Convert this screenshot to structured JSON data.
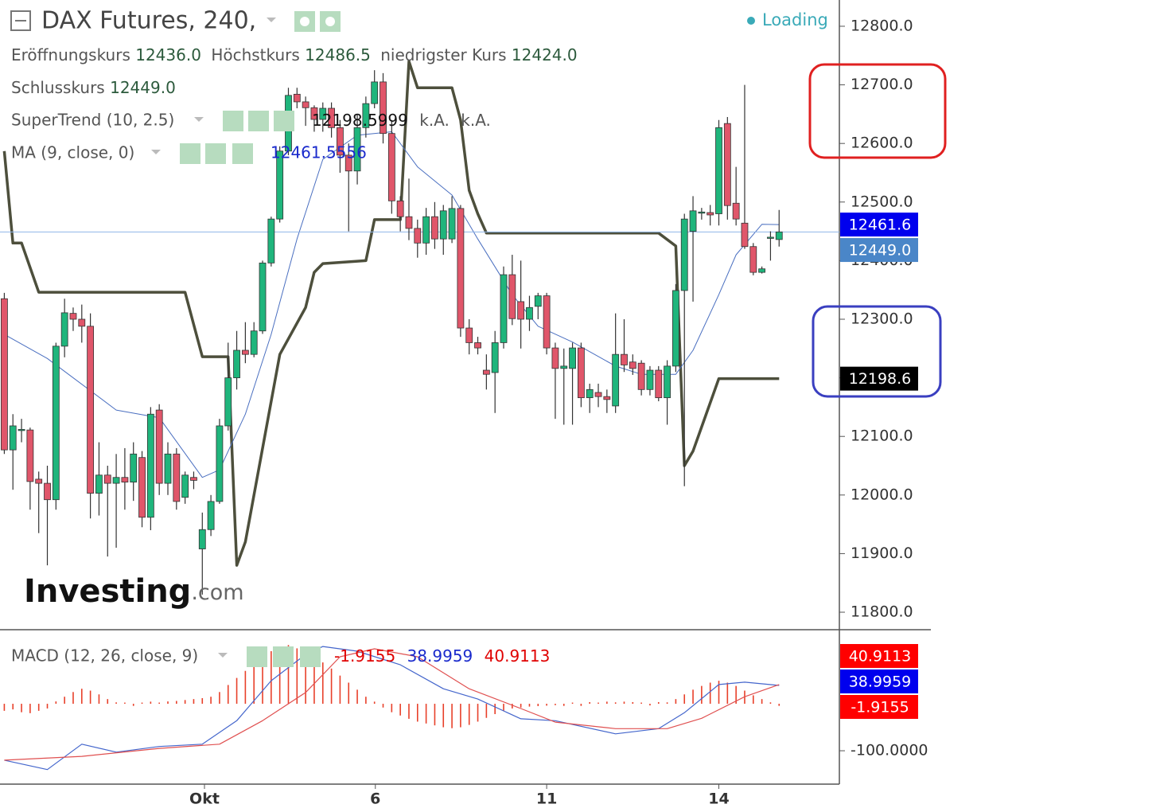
{
  "header": {
    "title": "DAX Futures, 240,",
    "status": "Loading"
  },
  "legend": {
    "open_label": "Eröffnungskurs",
    "open": "12436.0",
    "high_label": "Höchstkurs",
    "high": "12486.5",
    "low_label": "niedrigster Kurs",
    "low": "12424.0",
    "close_label": "Schlusskurs",
    "close": "12449.0",
    "supertrend_values": [
      "12198.5999",
      "k.A.",
      "k.A."
    ],
    "ma_value": "12461.5556"
  },
  "logo": {
    "brand": "Investing",
    "suffix": ".com"
  },
  "chart_data": [
    {
      "type": "candlestick",
      "xlim": [
        -0.5,
        97
      ],
      "ylim": [
        11771.5,
        12844.8
      ],
      "yticks": [
        {
          "value": 11800,
          "label": "11800.0"
        },
        {
          "value": 11900,
          "label": "11900.0"
        },
        {
          "value": 12000,
          "label": "12000.0"
        },
        {
          "value": 12100,
          "label": "12100.0"
        },
        {
          "value": 12200,
          "label": "12200.0"
        },
        {
          "value": 12300,
          "label": "12300.0"
        },
        {
          "value": 12400,
          "label": "12400.0"
        },
        {
          "value": 12500,
          "label": "12500.0"
        },
        {
          "value": 12600,
          "label": "12600.0"
        },
        {
          "value": 12700,
          "label": "12700.0"
        },
        {
          "value": 12800,
          "label": "12800.0"
        }
      ],
      "up_color": "#1fb57c",
      "down_color": "#e0566a",
      "candles": [
        [
          12335,
          12345,
          12070,
          12077
        ],
        [
          12077,
          12138,
          12009,
          12118
        ],
        [
          12110,
          12130,
          12090,
          12112
        ],
        [
          12111,
          12115,
          11975,
          12023
        ],
        [
          12027,
          12040,
          11935,
          12020
        ],
        [
          12020,
          12050,
          11880,
          11992
        ],
        [
          11992,
          12260,
          11975,
          12254
        ],
        [
          12254,
          12335,
          12235,
          12311
        ],
        [
          12310,
          12320,
          12280,
          12300
        ],
        [
          12300,
          12325,
          12260,
          12288
        ],
        [
          12288,
          12310,
          11960,
          12003
        ],
        [
          12003,
          12090,
          11965,
          12034
        ],
        [
          12034,
          12050,
          11895,
          12020
        ],
        [
          12020,
          12070,
          11910,
          12030
        ],
        [
          12030,
          12080,
          11975,
          12022
        ],
        [
          12022,
          12090,
          11990,
          12070
        ],
        [
          12064,
          12075,
          11945,
          11962
        ],
        [
          11962,
          12150,
          11940,
          12138
        ],
        [
          12145,
          12155,
          12000,
          12020
        ],
        [
          12020,
          12090,
          12000,
          12070
        ],
        [
          12070,
          12080,
          11975,
          11989
        ],
        [
          11996,
          12040,
          11985,
          12034
        ],
        [
          12030,
          12040,
          12010,
          12025
        ],
        [
          11908,
          11970,
          11830,
          11941
        ],
        [
          11941,
          12000,
          11930,
          11989
        ],
        [
          11989,
          12130,
          11985,
          12118
        ],
        [
          12118,
          12260,
          12110,
          12200
        ],
        [
          12200,
          12280,
          12180,
          12247
        ],
        [
          12247,
          12295,
          12225,
          12240
        ],
        [
          12240,
          12295,
          12235,
          12280
        ],
        [
          12280,
          12400,
          12275,
          12396
        ],
        [
          12396,
          12475,
          12390,
          12471
        ],
        [
          12471,
          12595,
          12465,
          12587
        ],
        [
          12587,
          12695,
          12580,
          12682
        ],
        [
          12684,
          12695,
          12660,
          12671
        ],
        [
          12671,
          12680,
          12630,
          12661
        ],
        [
          12661,
          12665,
          12620,
          12641
        ],
        [
          12641,
          12670,
          12620,
          12660
        ],
        [
          12660,
          12670,
          12610,
          12627
        ],
        [
          12627,
          12640,
          12550,
          12580
        ],
        [
          12580,
          12600,
          12450,
          12553
        ],
        [
          12553,
          12650,
          12530,
          12627
        ],
        [
          12627,
          12680,
          12610,
          12668
        ],
        [
          12668,
          12725,
          12660,
          12705
        ],
        [
          12705,
          12720,
          12600,
          12617
        ],
        [
          12617,
          12640,
          12480,
          12502
        ],
        [
          12502,
          12510,
          12450,
          12475
        ],
        [
          12475,
          12540,
          12435,
          12455
        ],
        [
          12455,
          12470,
          12405,
          12430
        ],
        [
          12430,
          12490,
          12410,
          12475
        ],
        [
          12475,
          12500,
          12420,
          12437
        ],
        [
          12437,
          12495,
          12410,
          12485
        ],
        [
          12437,
          12510,
          12430,
          12489
        ],
        [
          12489,
          12495,
          12270,
          12285
        ],
        [
          12285,
          12300,
          12240,
          12260
        ],
        [
          12260,
          12270,
          12240,
          12251
        ],
        [
          12213,
          12240,
          12180,
          12206
        ],
        [
          12209,
          12280,
          12140,
          12260
        ],
        [
          12260,
          12390,
          12250,
          12376
        ],
        [
          12376,
          12410,
          12290,
          12301
        ],
        [
          12330,
          12400,
          12250,
          12300
        ],
        [
          12300,
          12340,
          12280,
          12320
        ],
        [
          12322,
          12345,
          12300,
          12340
        ],
        [
          12340,
          12345,
          12240,
          12251
        ],
        [
          12251,
          12260,
          12130,
          12216
        ],
        [
          12216,
          12250,
          12120,
          12220
        ],
        [
          12216,
          12260,
          12120,
          12251
        ],
        [
          12251,
          12260,
          12150,
          12166
        ],
        [
          12166,
          12190,
          12140,
          12180
        ],
        [
          12175,
          12190,
          12150,
          12168
        ],
        [
          12168,
          12180,
          12140,
          12163
        ],
        [
          12152,
          12310,
          12140,
          12240
        ],
        [
          12240,
          12300,
          12210,
          12222
        ],
        [
          12227,
          12240,
          12205,
          12216
        ],
        [
          12225,
          12230,
          12170,
          12180
        ],
        [
          12180,
          12220,
          12170,
          12213
        ],
        [
          12213,
          12220,
          12160,
          12166
        ],
        [
          12166,
          12230,
          12120,
          12220
        ],
        [
          12220,
          12360,
          12210,
          12349
        ],
        [
          12349,
          12480,
          12015,
          12471
        ],
        [
          12450,
          12510,
          12330,
          12485
        ],
        [
          12482,
          12490,
          12470,
          12483
        ],
        [
          12482,
          12495,
          12460,
          12478
        ],
        [
          12480,
          12640,
          12460,
          12627
        ],
        [
          12634,
          12645,
          12470,
          12494
        ],
        [
          12498,
          12560,
          12460,
          12471
        ],
        [
          12464,
          12700,
          12420,
          12424
        ],
        [
          12424,
          12430,
          12375,
          12380
        ],
        [
          12380,
          12390,
          12378,
          12386
        ],
        [
          12440,
          12450,
          12400,
          12440
        ],
        [
          12436,
          12486.5,
          12424,
          12449
        ]
      ],
      "series": [
        {
          "name": "SuperTrend (10, 2.5)",
          "color": "#4d4f3c",
          "width": 3.5,
          "x": [
            0,
            1,
            2,
            4,
            21,
            23,
            26,
            27,
            28,
            32,
            35,
            36,
            37,
            42,
            43,
            46,
            47,
            48,
            52,
            53,
            54,
            55,
            56,
            76,
            78,
            79,
            80,
            83,
            90
          ],
          "values": [
            12587,
            12430,
            12430,
            12346,
            12346,
            12236,
            12236,
            11880,
            11920,
            12240,
            12320,
            12380,
            12395,
            12400,
            12470,
            12470,
            12740,
            12695,
            12695,
            12640,
            12520,
            12480,
            12447,
            12447,
            12425,
            12050,
            12075,
            12198.6,
            12198.6
          ]
        },
        {
          "name": "MA (9, close, 0)",
          "color": "#4a6fc0",
          "width": 1,
          "x": [
            0,
            5,
            13,
            18,
            23,
            25,
            28,
            31,
            34,
            37,
            41,
            45,
            48,
            52,
            55,
            59,
            62,
            66,
            71,
            74,
            78,
            80,
            83,
            85,
            88,
            90
          ],
          "values": [
            12274,
            12233,
            12145,
            12132,
            12030,
            12043,
            12138,
            12274,
            12437,
            12573,
            12614,
            12620,
            12560,
            12512,
            12437,
            12342,
            12288,
            12261,
            12220,
            12206,
            12206,
            12247,
            12342,
            12410,
            12462,
            12461.6
          ]
        }
      ],
      "last_price": 12449,
      "last_price_color": "#8fb4e8",
      "price_tags": [
        {
          "value": 12461.6,
          "label": "12461.6",
          "color": "#0000ee"
        },
        {
          "value": 12449,
          "label": "12449.0",
          "color": "#4a86c8"
        },
        {
          "value": 12198.6,
          "label": "12198.6",
          "color": "#000000"
        }
      ]
    },
    {
      "type": "macd",
      "name": "MACD (12, 26, close, 9)",
      "xlim": [
        -0.5,
        97
      ],
      "xticks": [
        {
          "value": 23.25,
          "label": "Okt"
        },
        {
          "value": 43.1,
          "label": "6"
        },
        {
          "value": 63,
          "label": "11"
        },
        {
          "value": 83,
          "label": "14"
        }
      ],
      "ylim": [
        -166,
        156
      ],
      "yticks": [
        {
          "value": -100,
          "label": "-100.0000"
        }
      ],
      "histogram_color": "#e8402a",
      "histogram": [
        -15,
        -12,
        -18,
        -20,
        -15,
        -10,
        5,
        15,
        25,
        32,
        28,
        20,
        10,
        3,
        0,
        -2,
        0,
        2,
        0,
        5,
        6,
        8,
        10,
        12,
        15,
        25,
        40,
        55,
        70,
        85,
        100,
        112,
        120,
        125,
        118,
        110,
        100,
        88,
        75,
        60,
        45,
        30,
        15,
        2,
        -8,
        -18,
        -25,
        -32,
        -38,
        -42,
        -46,
        -50,
        -52,
        -50,
        -45,
        -38,
        -30,
        -22,
        -15,
        -10,
        -8,
        -6,
        -5,
        -4,
        -3,
        -2,
        0,
        -2,
        1,
        0,
        2,
        3,
        2,
        1,
        0,
        -1,
        1,
        3,
        10,
        20,
        30,
        38,
        45,
        49,
        45,
        38,
        28,
        18,
        10,
        3,
        -1.9155
      ],
      "series": [
        {
          "color": "#4466cc",
          "width": 1.2,
          "x": [
            0,
            5,
            9,
            13,
            18,
            23,
            27,
            31,
            35,
            37,
            41,
            46,
            51,
            55,
            60,
            64,
            71,
            76,
            79,
            83,
            86,
            90
          ],
          "values": [
            -120,
            -140,
            -86,
            -103,
            -91,
            -86,
            -36,
            49,
            105,
            122,
            112,
            83,
            32,
            10,
            -32,
            -36,
            -64,
            -53,
            -19,
            41,
            46,
            38.9959
          ]
        },
        {
          "color": "#e05050",
          "width": 1.2,
          "x": [
            0,
            9,
            18,
            25,
            30,
            35,
            39,
            43,
            48,
            54,
            60,
            64,
            71,
            77,
            81,
            86,
            90
          ],
          "values": [
            -120,
            -112,
            -95,
            -86,
            -36,
            24,
            100,
            117,
            100,
            32,
            -10,
            -39,
            -53,
            -53,
            -31,
            15,
            40.9113
          ]
        }
      ],
      "price_tags": [
        {
          "value": 40.9113,
          "label": "40.9113",
          "color": "#ff0000"
        },
        {
          "value": 38.9959,
          "label": "38.9959",
          "color": "#0000ee"
        },
        {
          "value": -1.9155,
          "label": "-1.9155",
          "color": "#ff0000"
        }
      ]
    }
  ]
}
